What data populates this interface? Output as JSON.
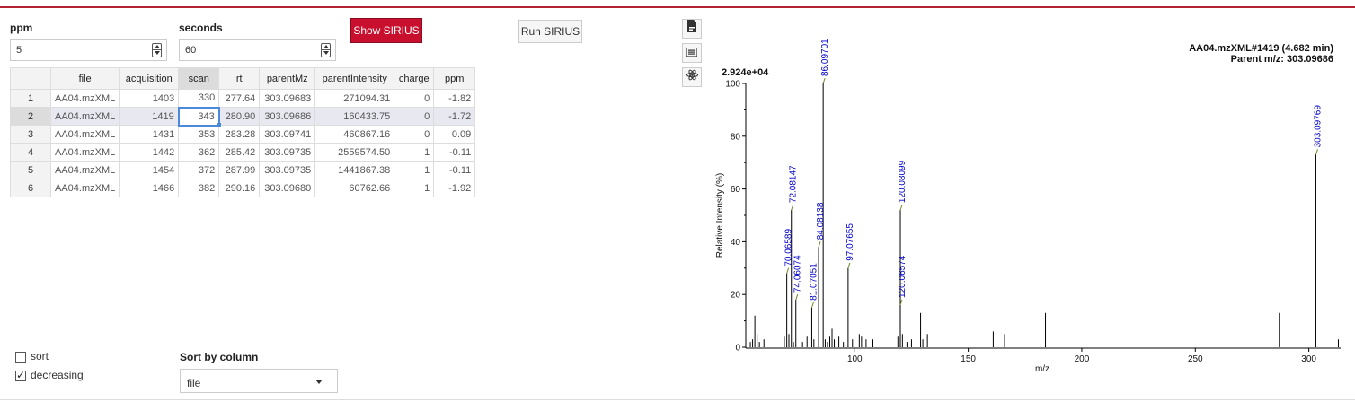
{
  "controls": {
    "ppm": {
      "label": "ppm",
      "value": "5"
    },
    "seconds": {
      "label": "seconds",
      "value": "60"
    },
    "show_sirius_label": "Show SIRIUS",
    "run_sirius_label": "Run SIRIUS"
  },
  "table": {
    "columns": [
      "file",
      "acquisition",
      "scan",
      "rt",
      "parentMz",
      "parentIntensity",
      "charge",
      "ppm"
    ],
    "rows": [
      [
        "1",
        "AA04.mzXML",
        "1403",
        "330",
        "277.64",
        "303.09683",
        "271094.31",
        "0",
        "-1.82"
      ],
      [
        "2",
        "AA04.mzXML",
        "1419",
        "343",
        "280.90",
        "303.09686",
        "160433.75",
        "0",
        "-1.72"
      ],
      [
        "3",
        "AA04.mzXML",
        "1431",
        "353",
        "283.28",
        "303.09741",
        "460867.16",
        "0",
        "0.09"
      ],
      [
        "4",
        "AA04.mzXML",
        "1442",
        "362",
        "285.42",
        "303.09735",
        "2559574.50",
        "1",
        "-0.11"
      ],
      [
        "5",
        "AA04.mzXML",
        "1454",
        "372",
        "287.99",
        "303.09735",
        "1441867.38",
        "1",
        "-0.11"
      ],
      [
        "6",
        "AA04.mzXML",
        "1466",
        "382",
        "290.16",
        "303.09680",
        "60762.66",
        "1",
        "-1.92"
      ]
    ],
    "sorted_column": "scan",
    "highlighted_row": 1,
    "active_cell": {
      "row": 1,
      "col": "scan"
    }
  },
  "sort_options": {
    "sort": {
      "label": "sort",
      "checked": false
    },
    "decreasing": {
      "label": "decreasing",
      "checked": true
    },
    "sort_by_label": "Sort by column",
    "sort_by_value": "file"
  },
  "plot_toolbar": {
    "icons": [
      "pdf-icon",
      "list-icon",
      "atom-icon"
    ]
  },
  "chart_data": {
    "type": "bar",
    "title": "AA04.mzXML#1419 (4.682 min)",
    "subtitle": "Parent m/z: 303.09686",
    "max_intensity_label": "2.924e+04",
    "xlabel": "m/z",
    "ylabel": "Relative Intensity (%)",
    "xlim": [
      52,
      314
    ],
    "ylim": [
      0,
      100
    ],
    "xticks": [
      100,
      150,
      200,
      250,
      300
    ],
    "yticks": [
      0,
      20,
      40,
      60,
      80,
      100
    ],
    "accent": "#0000cc",
    "peaks": [
      [
        54,
        2
      ],
      [
        55,
        3
      ],
      [
        56,
        12
      ],
      [
        57,
        5
      ],
      [
        58,
        2
      ],
      [
        60,
        3
      ],
      [
        69,
        4
      ],
      [
        70.06589,
        28
      ],
      [
        71,
        5
      ],
      [
        72.08147,
        52
      ],
      [
        73,
        2
      ],
      [
        74.06074,
        18
      ],
      [
        77,
        2
      ],
      [
        79,
        4
      ],
      [
        81.07051,
        15
      ],
      [
        82,
        3
      ],
      [
        84.08138,
        38
      ],
      [
        86.09701,
        100
      ],
      [
        87,
        3
      ],
      [
        88,
        2
      ],
      [
        89,
        4
      ],
      [
        90,
        7
      ],
      [
        91,
        3
      ],
      [
        93,
        4
      ],
      [
        95,
        2
      ],
      [
        97.07655,
        30
      ],
      [
        99,
        3
      ],
      [
        102,
        5
      ],
      [
        103,
        4
      ],
      [
        105,
        3
      ],
      [
        108,
        3
      ],
      [
        119,
        4
      ],
      [
        120.06574,
        16
      ],
      [
        120.08099,
        52
      ],
      [
        121,
        5
      ],
      [
        123,
        2
      ],
      [
        125,
        3
      ],
      [
        129,
        13
      ],
      [
        130,
        3
      ],
      [
        132,
        5
      ],
      [
        161,
        6
      ],
      [
        166,
        5
      ],
      [
        184,
        13
      ],
      [
        287,
        13
      ],
      [
        303.09769,
        73
      ],
      [
        313,
        3
      ]
    ],
    "labeled_peaks": [
      {
        "mz": 70.06589,
        "label": "70.06589"
      },
      {
        "mz": 72.08147,
        "label": "72.08147"
      },
      {
        "mz": 74.06074,
        "label": "74.06074"
      },
      {
        "mz": 81.07051,
        "label": "81.07051"
      },
      {
        "mz": 84.08138,
        "label": "84.08138"
      },
      {
        "mz": 86.09701,
        "label": "86.09701"
      },
      {
        "mz": 97.07655,
        "label": "97.07655"
      },
      {
        "mz": 120.06574,
        "label": "120.06574"
      },
      {
        "mz": 120.08099,
        "label": "120.08099"
      },
      {
        "mz": 303.09769,
        "label": "303.09769"
      }
    ]
  }
}
